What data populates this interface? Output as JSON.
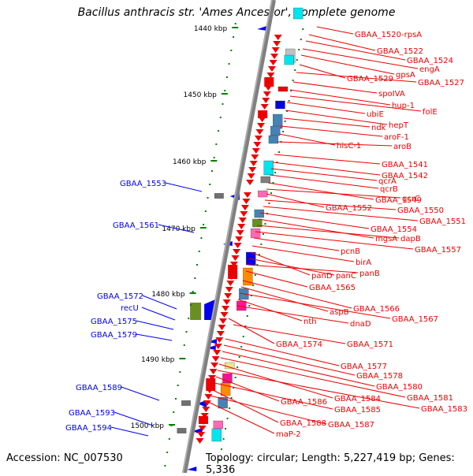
{
  "title": "Bacillus anthracis str. 'Ames Ancestor', complete genome",
  "footer": {
    "accession": "Accession: NC_007530",
    "topology": "Topology: circular; Length: 5,227,419 bp; Genes: 5,336"
  },
  "colors": {
    "forward_gene": "#0000ee",
    "reverse_gene": "#ee0000",
    "backbone": "#808080",
    "tick": "#008000"
  },
  "scale_labels": [
    "1440 kbp",
    "1450 kbp",
    "1460 kbp",
    "1470 kbp",
    "1480 kbp",
    "1490 kbp",
    "1500 kbp"
  ],
  "left_labels": [
    "GBAA_1553",
    "GBAA_1561",
    "GBAA_1572",
    "recU",
    "GBAA_1575",
    "GBAA_1579",
    "GBAA_1589",
    "GBAA_1593",
    "GBAA_1594"
  ],
  "right_labels": [
    "GBAA_1520-rpsA",
    "GBAA_1522",
    "GBAA_1524",
    "engA",
    "gpsA",
    "GBAA_1529",
    "GBAA_1527",
    "spoIVA",
    "hup-1",
    "folE",
    "ubiE",
    "hepT",
    "ndk",
    "aroF-1",
    "hisC-1",
    "aroB",
    "GBAA_1541",
    "GBAA_1542",
    "qcrA",
    "qcrB",
    "GBAA_1549",
    "qcrC",
    "GBAA_1552",
    "GBAA_1550",
    "GBAA_1551",
    "GBAA_1554",
    "mgsA",
    "dapB",
    "GBAA_1557",
    "pcnB",
    "birA",
    "panD",
    "panC",
    "panB",
    "GBAA_1565",
    "GBAA_1566",
    "aspB",
    "GBAA_1567",
    "nth",
    "dnaD",
    "GBAA_1574",
    "GBAA_1571",
    "GBAA_1577",
    "GBAA_1578",
    "GBAA_1580",
    "GBAA_1581",
    "GBAA_1584",
    "GBAA_1583",
    "GBAA_1586",
    "GBAA_1585",
    "GBAA_1588",
    "GBAA_1587",
    "maP-2"
  ]
}
